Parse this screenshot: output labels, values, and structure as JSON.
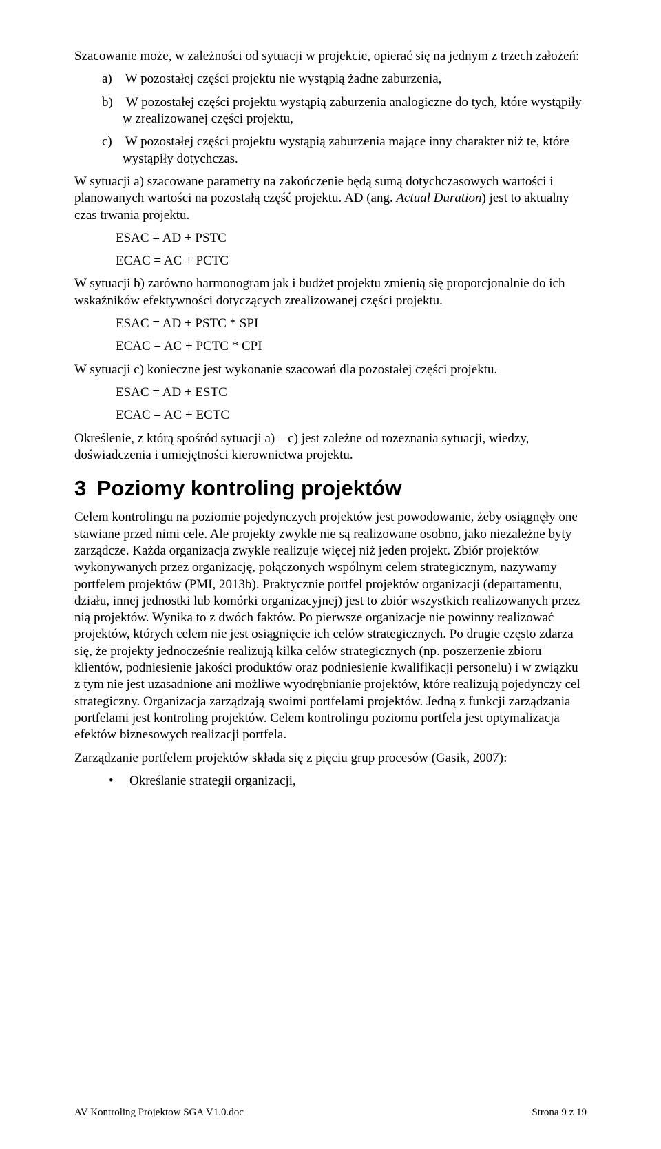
{
  "p1": "Szacowanie może, w zależności od sytuacji w projekcie, opierać się na jednym z trzech założeń:",
  "li_a": "a) W pozostałej części projektu nie wystąpią żadne zaburzenia,",
  "li_b": "b) W pozostałej części projektu wystąpią zaburzenia analogiczne do tych, które wystąpiły w zrealizowanej części projektu,",
  "li_c": "c) W pozostałej części projektu wystąpią zaburzenia mające inny charakter niż te, które wystąpiły dotychczas.",
  "p2_a": "W sytuacji a) szacowane parametry na zakończenie będą sumą dotychczasowych wartości i planowanych wartości na pozostałą część projektu. AD (ang. ",
  "p2_b": "Actual Duration",
  "p2_c": ") jest to aktualny czas trwania projektu.",
  "f1": "ESAC = AD + PSTC",
  "f2": "ECAC = AC + PCTC",
  "p3": "W sytuacji b) zarówno harmonogram jak i budżet projektu zmienią się proporcjonalnie do ich wskaźników efektywności dotyczących zrealizowanej części projektu.",
  "f3": "ESAC = AD + PSTC * SPI",
  "f4": "ECAC = AC + PCTC * CPI",
  "p4": "W sytuacji c) konieczne jest wykonanie szacowań dla pozostałej części projektu.",
  "f5": "ESAC = AD + ESTC",
  "f6": "ECAC = AC + ECTC",
  "p5": "Określenie, z którą spośród sytuacji a) – c) jest zależne od rozeznania sytuacji, wiedzy, doświadczenia i umiejętności kierownictwa projektu.",
  "h2": "3 Poziomy kontroling projektów",
  "p6": "Celem kontrolingu na poziomie pojedynczych projektów jest powodowanie, żeby osiągnęły one stawiane przed nimi cele. Ale projekty zwykle nie są realizowane osobno, jako niezależne byty zarządcze. Każda organizacja zwykle realizuje więcej niż jeden projekt. Zbiór projektów wykonywanych przez organizację, połączonych wspólnym celem strategicznym, nazywamy portfelem projektów (PMI, 2013b). Praktycznie portfel projektów organizacji (departamentu, działu, innej jednostki lub komórki organizacyjnej) jest to zbiór wszystkich realizowanych przez nią projektów. Wynika to z dwóch faktów. Po pierwsze organizacje nie powinny realizować projektów, których celem nie jest osiągnięcie ich celów strategicznych. Po drugie często zdarza się, że projekty jednocześnie realizują kilka celów strategicznych (np. poszerzenie zbioru klientów, podniesienie jakości produktów oraz podniesienie kwalifikacji personelu) i w związku z tym nie jest uzasadnione ani możliwe wyodrębnianie projektów, które realizują pojedynczy cel strategiczny. Organizacja zarządzają swoimi portfelami projektów. Jedną z funkcji zarządzania portfelami jest kontroling projektów. Celem kontrolingu poziomu portfela jest optymalizacja efektów biznesowych realizacji portfela.",
  "p7": "Zarządzanie portfelem projektów składa się z pięciu grup procesów (Gasik, 2007):",
  "b1": "Określanie strategii organizacji,",
  "footer_left": "AV Kontroling Projektow SGA V1.0.doc",
  "footer_right": "Strona 9 z 19"
}
